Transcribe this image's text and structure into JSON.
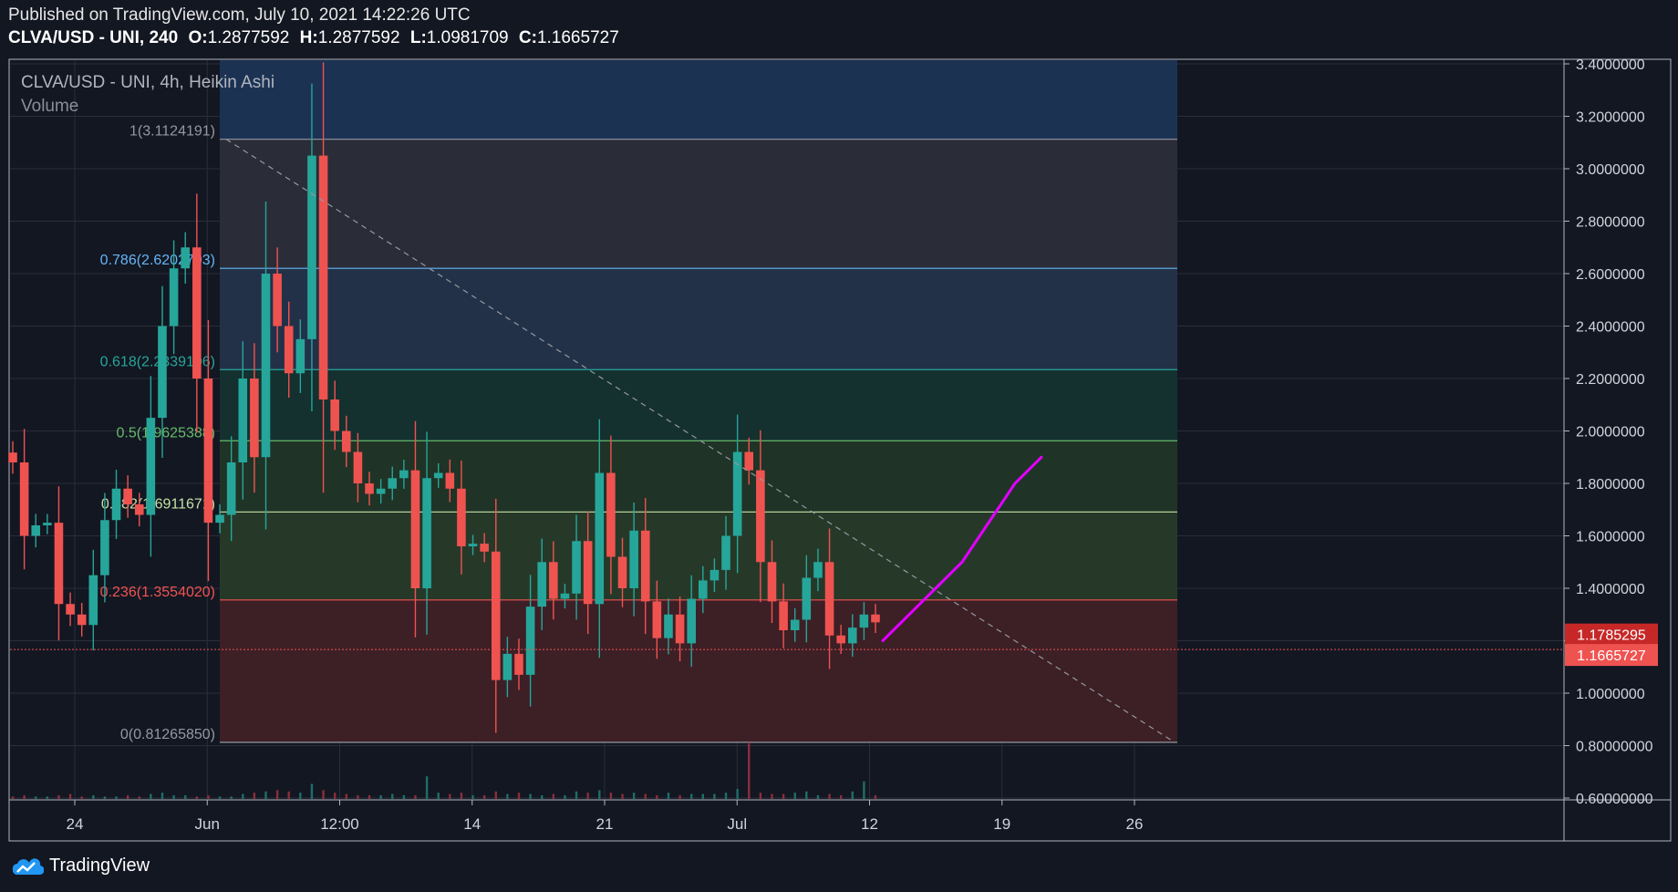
{
  "header": {
    "published": "Published on TradingView.com, July 10, 2021 14:22:26 UTC",
    "symbol_line": "CLVA/USD - UNI, 240",
    "open_label": "O:",
    "open": "1.2877592",
    "high_label": "H:",
    "high": "1.2877592",
    "low_label": "L:",
    "low": "1.0981709",
    "close_label": "C:",
    "close": "1.1665727"
  },
  "legend": {
    "title": "CLVA/USD - UNI, 4h, Heikin Ashi",
    "volume": "Volume"
  },
  "footer": {
    "brand": "TradingView"
  },
  "colors": {
    "up": "#26a69a",
    "down": "#ef5350",
    "background": "#131722",
    "grid": "#2a2e39",
    "projection": "#e100ff"
  },
  "chart_data": {
    "type": "candlestick",
    "chart_style": "Heikin Ashi",
    "x_ticks": [
      "24",
      "Jun",
      "12:00",
      "14",
      "21",
      "Jul",
      "12",
      "19",
      "26"
    ],
    "y_ticks": [
      "3.4000000",
      "3.2000000",
      "3.0000000",
      "2.8000000",
      "2.6000000",
      "2.4000000",
      "2.2000000",
      "2.0000000",
      "1.8000000",
      "1.6000000",
      "1.4000000",
      "1.2000000",
      "1.0000000",
      "0.80000000",
      "0.60000000"
    ],
    "ylim": [
      0.6,
      3.4
    ],
    "price_tags": [
      {
        "value": 1.1785295,
        "label": "1.1785295",
        "color": "#c62828"
      },
      {
        "value": 1.1665727,
        "label": "1.1665727",
        "color": "#ef5350"
      }
    ],
    "fib_levels": [
      {
        "ratio": "1",
        "value": 3.1124191,
        "label": "1(3.1124191)",
        "color": "#9598a1"
      },
      {
        "ratio": "0.786",
        "value": 2.6202703,
        "label": "0.786(2.6202703)",
        "color": "#64b5f6"
      },
      {
        "ratio": "0.618",
        "value": 2.2339106,
        "label": "0.618(2.2339106)",
        "color": "#26a69a"
      },
      {
        "ratio": "0.5",
        "value": 1.9625388,
        "label": "0.5(1.9625388)",
        "color": "#66bb6a"
      },
      {
        "ratio": "0.382",
        "value": 1.6911671,
        "label": "0.382(1.6911671)",
        "color": "#c5e1a5"
      },
      {
        "ratio": "0.236",
        "value": 1.355402,
        "label": "0.236(1.3554020)",
        "color": "#ef5350"
      },
      {
        "ratio": "0",
        "value": 0.8126585,
        "label": "0(0.81265850)",
        "color": "#9598a1"
      }
    ],
    "series": [
      {
        "name": "price",
        "values": [
          1.88,
          1.6,
          1.64,
          1.65,
          1.34,
          1.3,
          1.26,
          1.45,
          1.66,
          1.78,
          1.72,
          1.68,
          2.05,
          2.4,
          2.62,
          2.7,
          2.2,
          1.65,
          1.68,
          1.88,
          2.2,
          1.9,
          2.6,
          2.4,
          2.22,
          2.35,
          3.05,
          2.12,
          2.0,
          1.92,
          1.8,
          1.76,
          1.78,
          1.82,
          1.85,
          1.4,
          1.82,
          1.84,
          1.78,
          1.56,
          1.57,
          1.54,
          1.05,
          1.15,
          1.07,
          1.33,
          1.5,
          1.36,
          1.38,
          1.58,
          1.34,
          1.84,
          1.52,
          1.4,
          1.62,
          1.35,
          1.21,
          1.3,
          1.19,
          1.36,
          1.43,
          1.47,
          1.6,
          1.92,
          1.85,
          1.5,
          1.35,
          1.24,
          1.28,
          1.44,
          1.5,
          1.22,
          1.19,
          1.25,
          1.3,
          1.27
        ]
      },
      {
        "name": "volume",
        "values": [
          0.02,
          0.03,
          0.02,
          0.02,
          0.03,
          0.04,
          0.02,
          0.03,
          0.02,
          0.02,
          0.03,
          0.02,
          0.04,
          0.05,
          0.03,
          0.03,
          0.02,
          0.03,
          0.02,
          0.02,
          0.04,
          0.05,
          0.06,
          0.07,
          0.06,
          0.05,
          0.12,
          0.07,
          0.05,
          0.04,
          0.03,
          0.03,
          0.03,
          0.04,
          0.03,
          0.03,
          0.18,
          0.05,
          0.04,
          0.05,
          0.03,
          0.03,
          0.06,
          0.04,
          0.05,
          0.04,
          0.03,
          0.04,
          0.03,
          0.06,
          0.05,
          0.07,
          0.05,
          0.04,
          0.05,
          0.04,
          0.03,
          0.05,
          0.03,
          0.04,
          0.04,
          0.04,
          0.05,
          0.08,
          0.45,
          0.05,
          0.04,
          0.04,
          0.05,
          0.06,
          0.03,
          0.04,
          0.03,
          0.06,
          0.14,
          0.03
        ]
      }
    ],
    "projection": {
      "color": "#e100ff",
      "values": [
        1.2,
        1.3,
        1.4,
        1.5,
        1.65,
        1.8,
        1.9
      ]
    },
    "trend_line": {
      "from": 3.1124191,
      "to": 0.8126585
    },
    "last_price": 1.1665727
  }
}
